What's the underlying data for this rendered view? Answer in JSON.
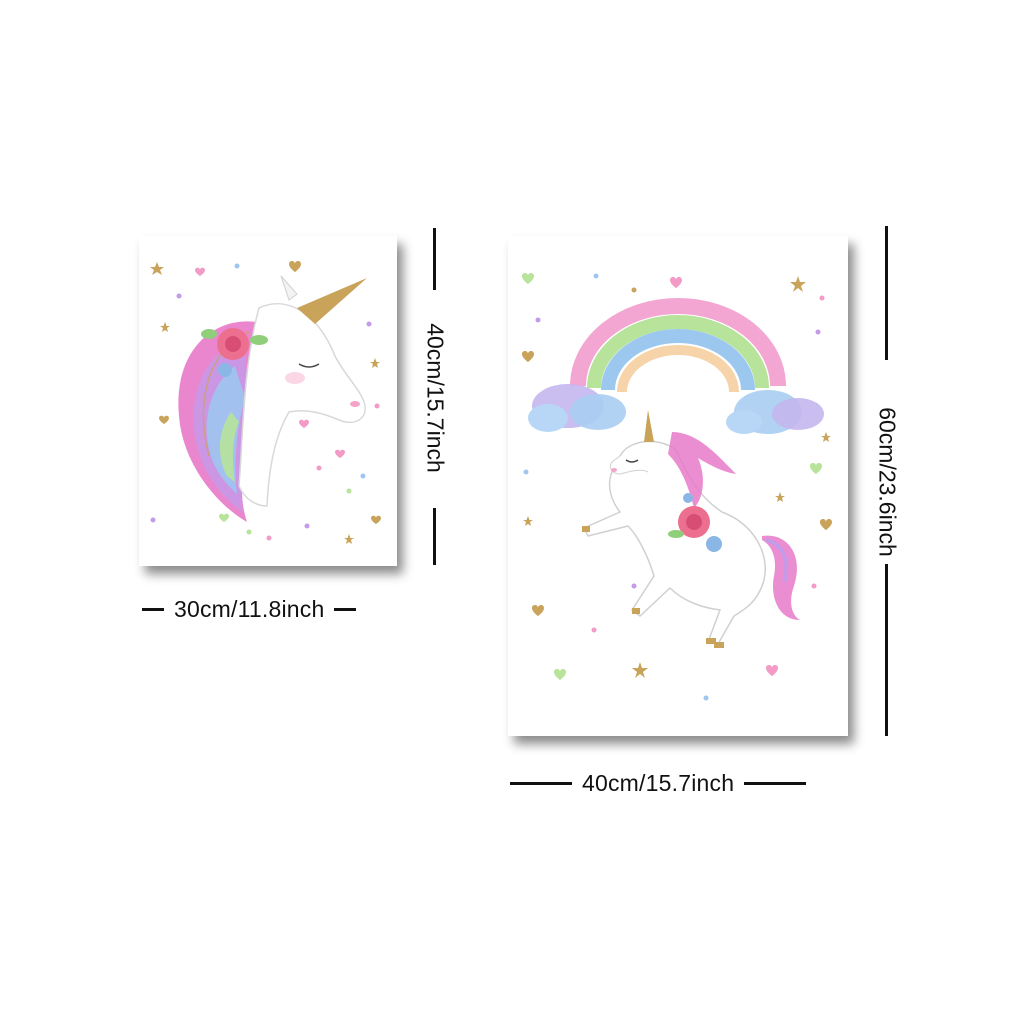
{
  "posters": [
    {
      "subject": "unicorn-head",
      "width_label": "30cm/11.8inch",
      "height_label": "40cm/15.7inch"
    },
    {
      "subject": "rearing-unicorn-with-rainbow",
      "width_label": "40cm/15.7inch",
      "height_label": "60cm/23.6inch"
    }
  ],
  "colors": {
    "dimension_line": "#111111",
    "shadow": "#555555",
    "mane_pink": "#e879c9",
    "mane_purple": "#c59ae8",
    "mane_blue": "#9cc8f0",
    "mane_green": "#b7e39a",
    "horn_gold": "#c9a35a",
    "rose": "#ec6f8f"
  }
}
